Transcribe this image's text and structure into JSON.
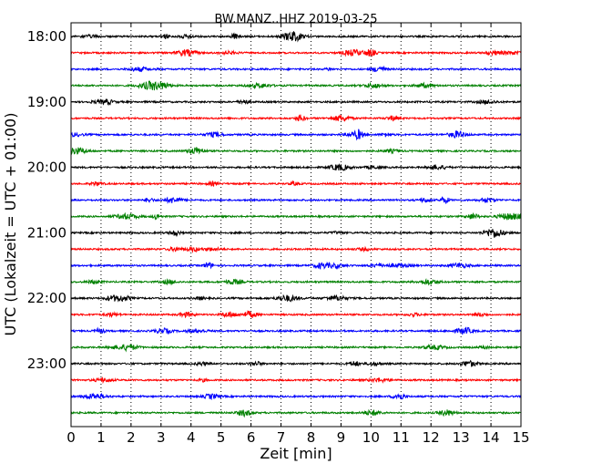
{
  "chart_data": {
    "type": "line",
    "title": "BW.MANZ..HHZ 2019-03-25",
    "xlabel": "Zeit  [min]",
    "ylabel": "UTC (Lokalzeit = UTC + 01:00)",
    "xlim": [
      0,
      15
    ],
    "x_ticks": [
      0,
      1,
      2,
      3,
      4,
      5,
      6,
      7,
      8,
      9,
      10,
      11,
      12,
      13,
      14,
      15
    ],
    "y_tick_labels": [
      "18:00",
      "19:00",
      "20:00",
      "21:00",
      "22:00",
      "23:00"
    ],
    "trace_start": "18:00",
    "trace_interval_minutes": 15,
    "trace_count": 24,
    "trace_colors": [
      "#000000",
      "#ff0000",
      "#0000ff",
      "#008000"
    ],
    "grid": "vertical dotted lines at each minute"
  }
}
